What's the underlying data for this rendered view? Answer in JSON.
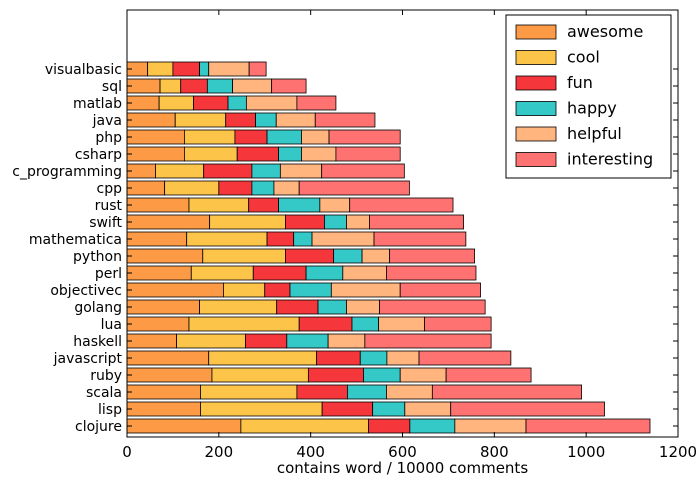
{
  "chart_data": {
    "type": "bar",
    "orientation": "horizontal",
    "stacked": true,
    "title": "",
    "xlabel": "contains word / 10000 comments",
    "ylabel": "",
    "xlim": [
      0,
      1200
    ],
    "xticks": [
      0,
      200,
      400,
      600,
      800,
      1000,
      1200
    ],
    "grid": false,
    "legend_position": "top-right",
    "categories": [
      "visualbasic",
      "sql",
      "matlab",
      "java",
      "php",
      "csharp",
      "c_programming",
      "cpp",
      "rust",
      "swift",
      "mathematica",
      "python",
      "perl",
      "objectivec",
      "golang",
      "lua",
      "haskell",
      "javascript",
      "ruby",
      "scala",
      "lisp",
      "clojure"
    ],
    "series": [
      {
        "name": "awesome",
        "color": "#fc9a45",
        "values": [
          45,
          72,
          70,
          105,
          125,
          125,
          62,
          82,
          135,
          180,
          130,
          165,
          140,
          210,
          158,
          135,
          108,
          178,
          185,
          160,
          160,
          248
        ]
      },
      {
        "name": "cool",
        "color": "#fdc44a",
        "values": [
          55,
          45,
          75,
          110,
          110,
          115,
          105,
          118,
          130,
          165,
          175,
          180,
          135,
          90,
          168,
          240,
          150,
          235,
          210,
          210,
          265,
          278
        ]
      },
      {
        "name": "fun",
        "color": "#f5373b",
        "values": [
          58,
          58,
          75,
          65,
          70,
          90,
          105,
          72,
          65,
          85,
          58,
          105,
          115,
          55,
          90,
          115,
          90,
          95,
          120,
          110,
          110,
          90
        ]
      },
      {
        "name": "happy",
        "color": "#34c9c6",
        "values": [
          20,
          55,
          40,
          45,
          75,
          50,
          62,
          48,
          90,
          48,
          40,
          62,
          80,
          90,
          62,
          58,
          90,
          58,
          80,
          85,
          70,
          98
        ]
      },
      {
        "name": "helpful",
        "color": "#ffb57d",
        "values": [
          88,
          85,
          110,
          85,
          60,
          75,
          90,
          55,
          65,
          50,
          135,
          60,
          95,
          150,
          72,
          100,
          80,
          70,
          100,
          100,
          100,
          155
        ]
      },
      {
        "name": "interesting",
        "color": "#ff7272",
        "values": [
          37,
          75,
          85,
          130,
          155,
          140,
          180,
          240,
          225,
          205,
          200,
          185,
          195,
          175,
          230,
          145,
          275,
          200,
          185,
          325,
          335,
          270
        ]
      }
    ]
  }
}
